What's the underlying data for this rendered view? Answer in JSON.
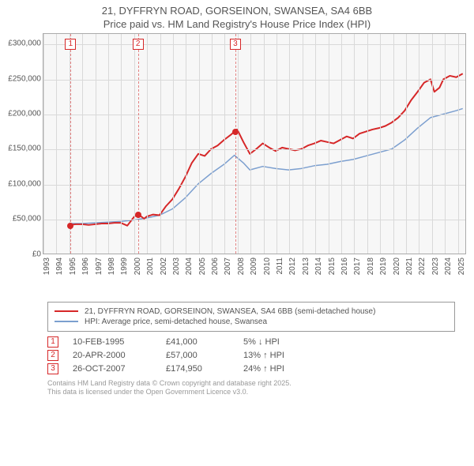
{
  "title_line1": "21, DYFFRYN ROAD, GORSEINON, SWANSEA, SA4 6BB",
  "title_line2": "Price paid vs. HM Land Registry's House Price Index (HPI)",
  "chart": {
    "type": "line",
    "background_color": "#f7f7f7",
    "grid_color": "#d9d9d9",
    "border_color": "#aaaaaa",
    "x": {
      "min": 1993,
      "max": 2025.7,
      "ticks": [
        1993,
        1994,
        1995,
        1996,
        1997,
        1998,
        1999,
        2000,
        2001,
        2002,
        2003,
        2004,
        2005,
        2006,
        2007,
        2008,
        2009,
        2010,
        2011,
        2012,
        2013,
        2014,
        2015,
        2016,
        2017,
        2018,
        2019,
        2020,
        2021,
        2022,
        2023,
        2024,
        2025
      ]
    },
    "y": {
      "min": 0,
      "max": 315000,
      "ticks": [
        0,
        50000,
        100000,
        150000,
        200000,
        250000,
        300000
      ],
      "tick_labels": [
        "£0",
        "£50,000",
        "£100,000",
        "£150,000",
        "£200,000",
        "£250,000",
        "£300,000"
      ]
    },
    "series": [
      {
        "name": "21, DYFFRYN ROAD, GORSEINON, SWANSEA, SA4 6BB (semi-detached house)",
        "color": "#d62728",
        "line_width": 2,
        "data": [
          [
            1995.1,
            41000
          ],
          [
            1995.5,
            42000
          ],
          [
            1996,
            42000
          ],
          [
            1996.5,
            41000
          ],
          [
            1997,
            42000
          ],
          [
            1997.5,
            43000
          ],
          [
            1998,
            43000
          ],
          [
            1998.5,
            44000
          ],
          [
            1999,
            44000
          ],
          [
            1999.5,
            40000
          ],
          [
            2000,
            52000
          ],
          [
            2000.3,
            57000
          ],
          [
            2000.8,
            50000
          ],
          [
            2001,
            53000
          ],
          [
            2001.5,
            56000
          ],
          [
            2002,
            55000
          ],
          [
            2002.5,
            68000
          ],
          [
            2003,
            78000
          ],
          [
            2003.5,
            93000
          ],
          [
            2004,
            110000
          ],
          [
            2004.5,
            130000
          ],
          [
            2005,
            143000
          ],
          [
            2005.5,
            140000
          ],
          [
            2006,
            150000
          ],
          [
            2006.5,
            155000
          ],
          [
            2007,
            163000
          ],
          [
            2007.5,
            170000
          ],
          [
            2007.8,
            174950
          ],
          [
            2008,
            178000
          ],
          [
            2008.1,
            175000
          ],
          [
            2008.5,
            160000
          ],
          [
            2009,
            143000
          ],
          [
            2009.5,
            150000
          ],
          [
            2010,
            158000
          ],
          [
            2010.5,
            152000
          ],
          [
            2011,
            147000
          ],
          [
            2011.5,
            152000
          ],
          [
            2012,
            150000
          ],
          [
            2012.5,
            148000
          ],
          [
            2013,
            150000
          ],
          [
            2013.5,
            155000
          ],
          [
            2014,
            158000
          ],
          [
            2014.5,
            162000
          ],
          [
            2015,
            160000
          ],
          [
            2015.5,
            158000
          ],
          [
            2016,
            163000
          ],
          [
            2016.5,
            168000
          ],
          [
            2017,
            165000
          ],
          [
            2017.5,
            172000
          ],
          [
            2018,
            175000
          ],
          [
            2018.5,
            178000
          ],
          [
            2019,
            180000
          ],
          [
            2019.5,
            183000
          ],
          [
            2020,
            188000
          ],
          [
            2020.5,
            195000
          ],
          [
            2021,
            205000
          ],
          [
            2021.5,
            220000
          ],
          [
            2022,
            232000
          ],
          [
            2022.5,
            245000
          ],
          [
            2023,
            250000
          ],
          [
            2023.3,
            232000
          ],
          [
            2023.7,
            238000
          ],
          [
            2024,
            250000
          ],
          [
            2024.5,
            255000
          ],
          [
            2025,
            253000
          ],
          [
            2025.5,
            258000
          ]
        ]
      },
      {
        "name": "HPI: Average price, semi-detached house, Swansea",
        "color": "#7c9fcf",
        "line_width": 1.5,
        "data": [
          [
            1995.1,
            43000
          ],
          [
            1996,
            43000
          ],
          [
            1997,
            44000
          ],
          [
            1998,
            45000
          ],
          [
            1999,
            46000
          ],
          [
            2000,
            48000
          ],
          [
            2001,
            51000
          ],
          [
            2002,
            55000
          ],
          [
            2003,
            64000
          ],
          [
            2004,
            80000
          ],
          [
            2005,
            100000
          ],
          [
            2006,
            115000
          ],
          [
            2007,
            128000
          ],
          [
            2007.8,
            141000
          ],
          [
            2008.5,
            130000
          ],
          [
            2009,
            120000
          ],
          [
            2010,
            125000
          ],
          [
            2011,
            122000
          ],
          [
            2012,
            120000
          ],
          [
            2013,
            122000
          ],
          [
            2014,
            126000
          ],
          [
            2015,
            128000
          ],
          [
            2016,
            132000
          ],
          [
            2017,
            135000
          ],
          [
            2018,
            140000
          ],
          [
            2019,
            145000
          ],
          [
            2020,
            150000
          ],
          [
            2021,
            163000
          ],
          [
            2022,
            180000
          ],
          [
            2023,
            195000
          ],
          [
            2024,
            200000
          ],
          [
            2025,
            205000
          ],
          [
            2025.5,
            208000
          ]
        ]
      }
    ],
    "event_markers": [
      {
        "id": "1",
        "x": 1995.1,
        "marker_y": 41000,
        "marker_color": "#d62728"
      },
      {
        "id": "2",
        "x": 2000.3,
        "marker_y": 57000,
        "marker_color": "#d62728"
      },
      {
        "id": "3",
        "x": 2007.82,
        "marker_y": 174950,
        "marker_color": "#d62728"
      }
    ]
  },
  "legend": {
    "items": [
      {
        "color": "#d62728",
        "label": "21, DYFFRYN ROAD, GORSEINON, SWANSEA, SA4 6BB (semi-detached house)"
      },
      {
        "color": "#7c9fcf",
        "label": "HPI: Average price, semi-detached house, Swansea"
      }
    ]
  },
  "events": [
    {
      "id": "1",
      "date": "10-FEB-1995",
      "price": "£41,000",
      "pct": "5% ↓ HPI"
    },
    {
      "id": "2",
      "date": "20-APR-2000",
      "price": "£57,000",
      "pct": "13% ↑ HPI"
    },
    {
      "id": "3",
      "date": "26-OCT-2007",
      "price": "£174,950",
      "pct": "24% ↑ HPI"
    }
  ],
  "attribution_line1": "Contains HM Land Registry data © Crown copyright and database right 2025.",
  "attribution_line2": "This data is licensed under the Open Government Licence v3.0."
}
